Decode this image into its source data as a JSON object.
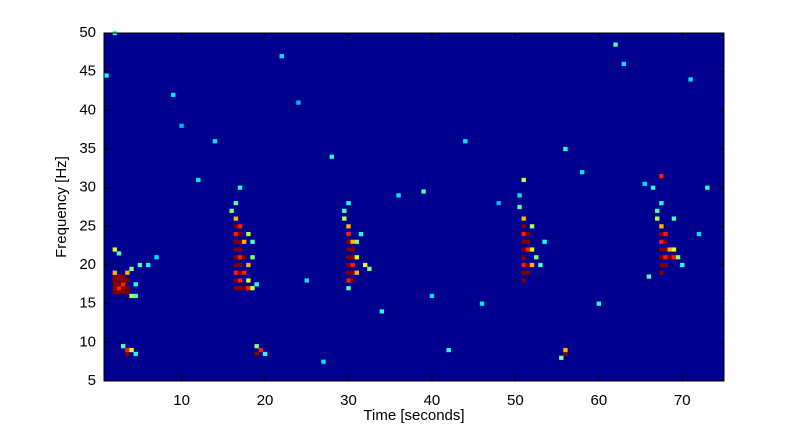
{
  "chart_data": {
    "type": "spectrogram",
    "xlabel": "Time [seconds]",
    "ylabel": "Frequency [Hz]",
    "background": "#00008f",
    "colormap": "jet",
    "xlim": [
      0.7,
      75
    ],
    "xticks": [
      10,
      20,
      30,
      40,
      50,
      60,
      70
    ],
    "ylim": [
      5,
      50
    ],
    "yticks": [
      5,
      10,
      15,
      20,
      25,
      30,
      35,
      40,
      45,
      50
    ],
    "points": [
      [
        2,
        16.5,
        1
      ],
      [
        2,
        17,
        1
      ],
      [
        2,
        17.5,
        1
      ],
      [
        2,
        18,
        1
      ],
      [
        2,
        18.5,
        1
      ],
      [
        2.5,
        16.5,
        1
      ],
      [
        2.5,
        17,
        0.85
      ],
      [
        2.5,
        17.5,
        1
      ],
      [
        2.5,
        18,
        1
      ],
      [
        2.5,
        18.5,
        1
      ],
      [
        3,
        16.5,
        1
      ],
      [
        3,
        17,
        1
      ],
      [
        3,
        17.5,
        0.85
      ],
      [
        3,
        18,
        1
      ],
      [
        3,
        18.5,
        1
      ],
      [
        3.5,
        16.5,
        1
      ],
      [
        3.5,
        17,
        1
      ],
      [
        3.5,
        18,
        1
      ],
      [
        3.5,
        19,
        0.7
      ],
      [
        2,
        19,
        0.7
      ],
      [
        2,
        22,
        0.6
      ],
      [
        2.5,
        21.5,
        0.45
      ],
      [
        4,
        16,
        0.55
      ],
      [
        4.5,
        16,
        0.45
      ],
      [
        4,
        19.5,
        0.5
      ],
      [
        5,
        20,
        0.45
      ],
      [
        6,
        20,
        0.4
      ],
      [
        4.5,
        17.5,
        0.4
      ],
      [
        3.5,
        8.5,
        1
      ],
      [
        3.5,
        9,
        0.85
      ],
      [
        4,
        9,
        0.6
      ],
      [
        3,
        9.5,
        0.45
      ],
      [
        4.5,
        8.5,
        0.4
      ],
      [
        16.5,
        17,
        1
      ],
      [
        16.5,
        18,
        1
      ],
      [
        16.5,
        19,
        0.85
      ],
      [
        16.5,
        20,
        1
      ],
      [
        16.5,
        21,
        1
      ],
      [
        16.5,
        22,
        1
      ],
      [
        16.5,
        23,
        1
      ],
      [
        16.5,
        24,
        0.85
      ],
      [
        16.5,
        25,
        1
      ],
      [
        16.5,
        26,
        0.7
      ],
      [
        17,
        17,
        1
      ],
      [
        17,
        18,
        0.85
      ],
      [
        17,
        19,
        1
      ],
      [
        17,
        20,
        1
      ],
      [
        17,
        21,
        0.85
      ],
      [
        17,
        22,
        1
      ],
      [
        17,
        23,
        1
      ],
      [
        17,
        24,
        1
      ],
      [
        17,
        25,
        0.85
      ],
      [
        17.5,
        17,
        1
      ],
      [
        17.5,
        19,
        0.85
      ],
      [
        17.5,
        21,
        1
      ],
      [
        17.5,
        23,
        0.7
      ],
      [
        18,
        17,
        0.85
      ],
      [
        18,
        20,
        0.7
      ],
      [
        18,
        18,
        0.6
      ],
      [
        18,
        24,
        0.55
      ],
      [
        18.5,
        21,
        0.5
      ],
      [
        18.5,
        23,
        0.45
      ],
      [
        16,
        27,
        0.5
      ],
      [
        16.5,
        28,
        0.45
      ],
      [
        17,
        30,
        0.4
      ],
      [
        18.5,
        17,
        0.55
      ],
      [
        19,
        17.5,
        0.4
      ],
      [
        19,
        8.5,
        1
      ],
      [
        19.5,
        9,
        0.85
      ],
      [
        19,
        9.5,
        0.5
      ],
      [
        20,
        8.5,
        0.4
      ],
      [
        30,
        18,
        0.85
      ],
      [
        30,
        19,
        1
      ],
      [
        30,
        20,
        1
      ],
      [
        30,
        21,
        1
      ],
      [
        30,
        22,
        1
      ],
      [
        30,
        23,
        1
      ],
      [
        30,
        24,
        0.85
      ],
      [
        30,
        25,
        0.7
      ],
      [
        30.5,
        18,
        1
      ],
      [
        30.5,
        19,
        1
      ],
      [
        30.5,
        20,
        0.85
      ],
      [
        30.5,
        21,
        1
      ],
      [
        30.5,
        22,
        1
      ],
      [
        30.5,
        23,
        0.7
      ],
      [
        31,
        19,
        0.7
      ],
      [
        31,
        21,
        0.6
      ],
      [
        31,
        23,
        0.5
      ],
      [
        29.5,
        26,
        0.55
      ],
      [
        29.5,
        27,
        0.45
      ],
      [
        30,
        28,
        0.4
      ],
      [
        32,
        20,
        0.6
      ],
      [
        32.5,
        19.5,
        0.5
      ],
      [
        31.5,
        24,
        0.4
      ],
      [
        30,
        17,
        0.45
      ],
      [
        51,
        18,
        1
      ],
      [
        51,
        19,
        1
      ],
      [
        51,
        20,
        0.85
      ],
      [
        51,
        21,
        1
      ],
      [
        51,
        22,
        1
      ],
      [
        51,
        23,
        1
      ],
      [
        51,
        24,
        0.85
      ],
      [
        51,
        25,
        1
      ],
      [
        51,
        26,
        0.7
      ],
      [
        51.5,
        19,
        1
      ],
      [
        51.5,
        20,
        1
      ],
      [
        51.5,
        22,
        0.85
      ],
      [
        51.5,
        23,
        1
      ],
      [
        51.5,
        24,
        1
      ],
      [
        52,
        20,
        0.7
      ],
      [
        52,
        22,
        0.6
      ],
      [
        52,
        25,
        0.55
      ],
      [
        52.5,
        21,
        0.5
      ],
      [
        53,
        20,
        0.45
      ],
      [
        50.5,
        27.5,
        0.45
      ],
      [
        51,
        31,
        0.55
      ],
      [
        50.5,
        29,
        0.35
      ],
      [
        53.5,
        23,
        0.4
      ],
      [
        56,
        8.5,
        1
      ],
      [
        56,
        9,
        0.7
      ],
      [
        55.5,
        8,
        0.5
      ],
      [
        67.5,
        19,
        1
      ],
      [
        67.5,
        20,
        1
      ],
      [
        67.5,
        21,
        1
      ],
      [
        67.5,
        22,
        1
      ],
      [
        67.5,
        23,
        0.85
      ],
      [
        67.5,
        24,
        1
      ],
      [
        67.5,
        25,
        0.7
      ],
      [
        68,
        20,
        1
      ],
      [
        68,
        21,
        0.85
      ],
      [
        68,
        22,
        1
      ],
      [
        68,
        23,
        1
      ],
      [
        68,
        24,
        0.85
      ],
      [
        68.5,
        21,
        1
      ],
      [
        68.5,
        22,
        0.7
      ],
      [
        69,
        21,
        0.85
      ],
      [
        69,
        22,
        0.6
      ],
      [
        69.5,
        21,
        0.5
      ],
      [
        67,
        26,
        0.55
      ],
      [
        67,
        27,
        0.45
      ],
      [
        67.5,
        28,
        0.4
      ],
      [
        67.5,
        31.5,
        0.85
      ],
      [
        66.5,
        30,
        0.4
      ],
      [
        65.5,
        30.5,
        0.35
      ],
      [
        69,
        26,
        0.45
      ],
      [
        70,
        20,
        0.4
      ],
      [
        2,
        50,
        0.45
      ],
      [
        1,
        44.5,
        0.4
      ],
      [
        9,
        42,
        0.35
      ],
      [
        14,
        36,
        0.35
      ],
      [
        22,
        47,
        0.35
      ],
      [
        28,
        34,
        0.4
      ],
      [
        36,
        29,
        0.35
      ],
      [
        39,
        29.5,
        0.45
      ],
      [
        44,
        36,
        0.35
      ],
      [
        58,
        32,
        0.35
      ],
      [
        62,
        48.5,
        0.45
      ],
      [
        63,
        46,
        0.35
      ],
      [
        71,
        44,
        0.35
      ],
      [
        73,
        30,
        0.4
      ],
      [
        12,
        31,
        0.35
      ],
      [
        25,
        18,
        0.35
      ],
      [
        40,
        16,
        0.35
      ],
      [
        46,
        15,
        0.35
      ],
      [
        60,
        15,
        0.4
      ],
      [
        34,
        14,
        0.4
      ],
      [
        27,
        7.5,
        0.35
      ],
      [
        42,
        9,
        0.4
      ],
      [
        66,
        18.5,
        0.45
      ],
      [
        72,
        24,
        0.35
      ],
      [
        7,
        21,
        0.35
      ],
      [
        48,
        28,
        0.3
      ],
      [
        24,
        41,
        0.3
      ],
      [
        56,
        35,
        0.4
      ],
      [
        10,
        38,
        0.3
      ]
    ]
  }
}
